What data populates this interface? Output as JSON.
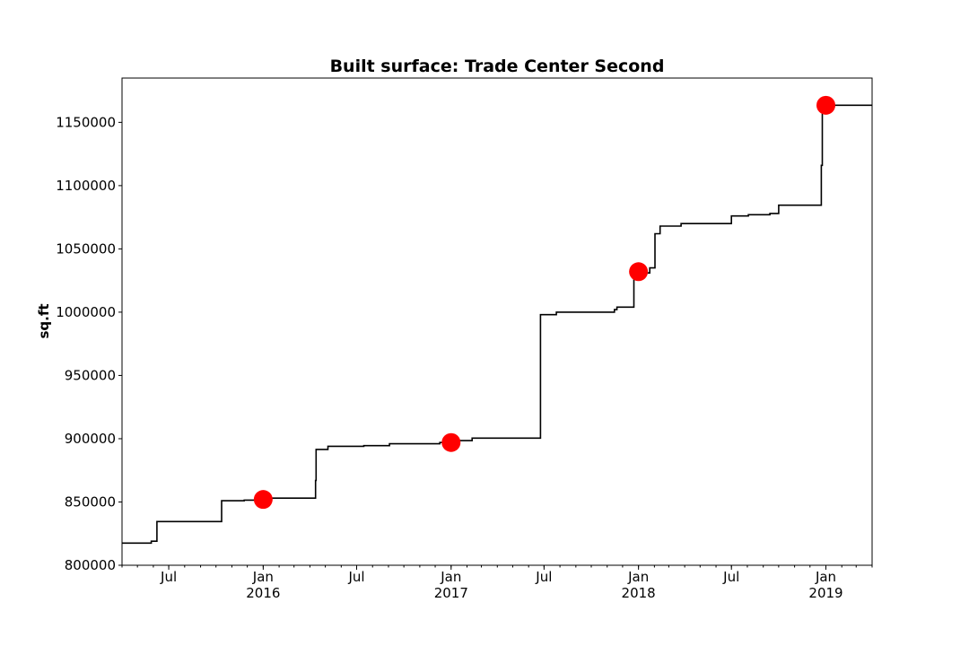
{
  "chart_data": {
    "type": "line",
    "title": "Built surface: Trade Center Second",
    "xlabel": "",
    "ylabel": "sq.ft",
    "xlim": [
      "2015-04-01",
      "2019-04-01"
    ],
    "ylim": [
      800000,
      1185000
    ],
    "y_ticks": [
      800000,
      850000,
      900000,
      950000,
      1000000,
      1050000,
      1100000,
      1150000
    ],
    "y_tick_labels": [
      "800000",
      "850000",
      "900000",
      "950000",
      "1000000",
      "1050000",
      "1100000",
      "1150000"
    ],
    "x_ticks": [
      {
        "date": "2015-07-01",
        "label": "Jul",
        "year": ""
      },
      {
        "date": "2016-01-01",
        "label": "Jan",
        "year": "2016"
      },
      {
        "date": "2016-07-01",
        "label": "Jul",
        "year": ""
      },
      {
        "date": "2017-01-01",
        "label": "Jan",
        "year": "2017"
      },
      {
        "date": "2017-07-01",
        "label": "Jul",
        "year": ""
      },
      {
        "date": "2018-01-01",
        "label": "Jan",
        "year": "2018"
      },
      {
        "date": "2018-07-01",
        "label": "Jul",
        "year": ""
      },
      {
        "date": "2019-01-01",
        "label": "Jan",
        "year": "2019"
      }
    ],
    "grid": false,
    "series": [
      {
        "style": "step",
        "color": "#000000",
        "points": [
          [
            "2015-04-01",
            817500
          ],
          [
            "2015-05-28",
            819000
          ],
          [
            "2015-06-08",
            834500
          ],
          [
            "2015-10-12",
            851000
          ],
          [
            "2015-11-25",
            851500
          ],
          [
            "2015-12-20",
            852000
          ],
          [
            "2016-01-10",
            853000
          ],
          [
            "2016-04-12",
            867000
          ],
          [
            "2016-04-13",
            891500
          ],
          [
            "2016-05-06",
            894000
          ],
          [
            "2016-07-15",
            894500
          ],
          [
            "2016-09-03",
            896000
          ],
          [
            "2016-12-10",
            897000
          ],
          [
            "2017-01-13",
            898500
          ],
          [
            "2017-02-11",
            900500
          ],
          [
            "2017-06-24",
            998000
          ],
          [
            "2017-07-25",
            1000000
          ],
          [
            "2017-11-15",
            1002000
          ],
          [
            "2017-11-20",
            1004000
          ],
          [
            "2017-12-23",
            1031000
          ],
          [
            "2018-01-23",
            1035000
          ],
          [
            "2018-02-02",
            1062000
          ],
          [
            "2018-02-12",
            1068000
          ],
          [
            "2018-03-25",
            1070000
          ],
          [
            "2018-07-01",
            1076000
          ],
          [
            "2018-08-03",
            1077000
          ],
          [
            "2018-09-14",
            1078000
          ],
          [
            "2018-10-01",
            1084500
          ],
          [
            "2018-12-23",
            1116000
          ],
          [
            "2018-12-25",
            1163500
          ],
          [
            "2019-04-01",
            1163500
          ]
        ]
      },
      {
        "style": "markers",
        "color": "#ff0000",
        "points": [
          [
            "2016-01-01",
            852000
          ],
          [
            "2017-01-01",
            897000
          ],
          [
            "2018-01-01",
            1032000
          ],
          [
            "2019-01-01",
            1163500
          ]
        ]
      }
    ]
  }
}
